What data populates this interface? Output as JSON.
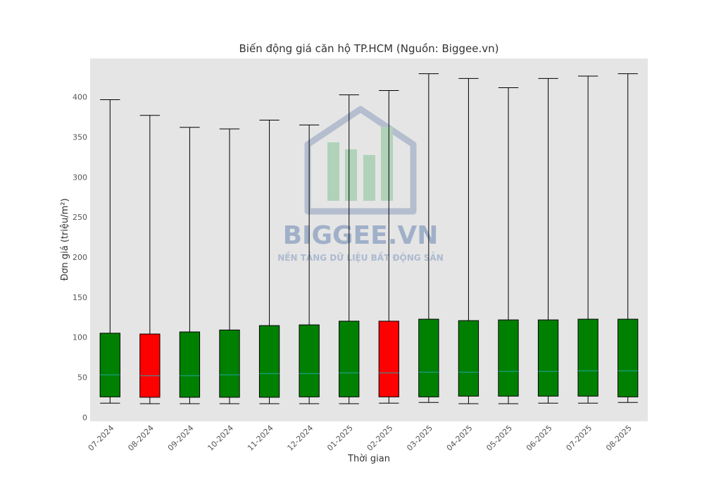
{
  "chart_data": {
    "type": "box",
    "title": "Biến động giá căn hộ TP.HCM (Nguồn: Biggee.vn)",
    "x_label": "Thời gian",
    "y_label": "Đơn giá (triệu/m²)",
    "categories": [
      "07-2024",
      "08-2024",
      "09-2024",
      "10-2024",
      "11-2024",
      "12-2024",
      "01-2025",
      "02-2025",
      "03-2025",
      "04-2025",
      "05-2025",
      "06-2025",
      "07-2025",
      "08-2025"
    ],
    "low": [
      17.6,
      17,
      17,
      17,
      17,
      17,
      17,
      17.6,
      18.5,
      17,
      17,
      17.6,
      17.6,
      18.5
    ],
    "q1": [
      25.5,
      25,
      25,
      25,
      25,
      25.5,
      25.5,
      25.5,
      25.5,
      26.4,
      26.4,
      26.4,
      26.4,
      25.5
    ],
    "median": [
      53,
      52,
      52,
      53,
      54.6,
      54.6,
      55.5,
      55.5,
      56.4,
      56.4,
      57.3,
      57.3,
      58,
      58
    ],
    "q3": [
      105,
      104,
      106.6,
      109,
      114.5,
      115.4,
      120,
      120,
      122.5,
      120.7,
      121.6,
      121.6,
      122.5,
      122.5
    ],
    "high": [
      396.5,
      377,
      362,
      360,
      371,
      365,
      402.6,
      408,
      429,
      423,
      411.5,
      423,
      426,
      429
    ],
    "colors": [
      "#008000",
      "#ff0000",
      "#008000",
      "#008000",
      "#008000",
      "#008000",
      "#008000",
      "#ff0000",
      "#008000",
      "#008000",
      "#008000",
      "#008000",
      "#008000",
      "#008000"
    ],
    "median_color": "#1fa5a5",
    "ylim": [
      -5,
      448
    ],
    "yticks": [
      0,
      50,
      100,
      150,
      200,
      250,
      300,
      350,
      400
    ],
    "watermark": {
      "brand": "BIGGEE.VN",
      "tagline": "NỀN TẢNG DỮ LIỆU BẤT ĐỘNG SẢN"
    }
  }
}
